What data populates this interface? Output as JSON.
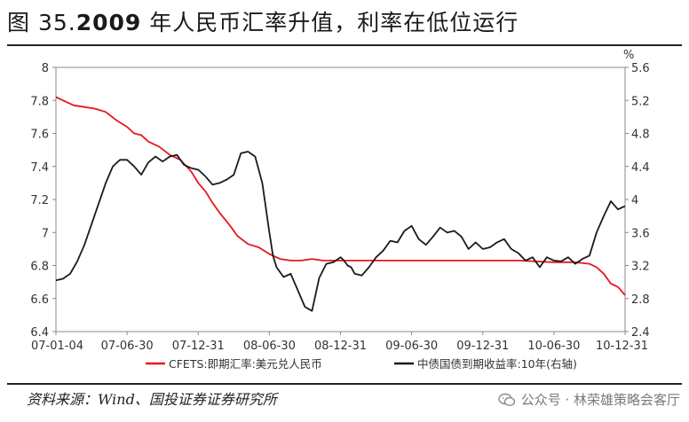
{
  "title": {
    "prefix": "图 35.",
    "year": "2009",
    "rest": " 年人民币汇率升值，利率在低位运行"
  },
  "source": "资料来源：Wind、国投证券证券研究所",
  "watermark": "公众号 · 林荣雄策略会客厅",
  "chart_data": {
    "type": "line",
    "right_unit": "%",
    "x_ticks": [
      "07-01-04",
      "07-06-30",
      "07-12-31",
      "08-06-30",
      "08-12-31",
      "09-06-30",
      "09-12-31",
      "10-06-30",
      "10-12-31"
    ],
    "y_left_ticks": [
      "6.4",
      "6.6",
      "6.8",
      "7",
      "7.2",
      "7.4",
      "7.6",
      "7.8",
      "8"
    ],
    "y_right_ticks": [
      "2.4",
      "2.8",
      "3.2",
      "3.6",
      "4",
      "4.4",
      "4.8",
      "5.2",
      "5.6"
    ],
    "ylim_left": [
      6.4,
      8
    ],
    "ylim_right": [
      2.4,
      5.6
    ],
    "xlim": [
      0,
      8
    ],
    "series": [
      {
        "name": "CFETS:即期汇率:美元兑人民币",
        "axis": "left",
        "color": "#e8161e",
        "x": [
          0,
          0.1,
          0.25,
          0.4,
          0.55,
          0.7,
          0.85,
          1.0,
          1.1,
          1.2,
          1.3,
          1.45,
          1.6,
          1.75,
          1.9,
          2.0,
          2.1,
          2.2,
          2.3,
          2.45,
          2.55,
          2.7,
          2.85,
          3.0,
          3.15,
          3.3,
          3.45,
          3.6,
          3.75,
          3.9,
          4.0,
          4.3,
          4.6,
          5.0,
          5.5,
          6.0,
          6.5,
          7.0,
          7.3,
          7.5,
          7.6,
          7.7,
          7.8,
          7.9,
          8.0
        ],
        "y": [
          7.82,
          7.8,
          7.77,
          7.76,
          7.75,
          7.73,
          7.68,
          7.64,
          7.6,
          7.59,
          7.55,
          7.52,
          7.47,
          7.44,
          7.37,
          7.3,
          7.25,
          7.18,
          7.12,
          7.04,
          6.98,
          6.93,
          6.91,
          6.87,
          6.84,
          6.83,
          6.83,
          6.84,
          6.83,
          6.83,
          6.83,
          6.83,
          6.83,
          6.83,
          6.83,
          6.83,
          6.83,
          6.82,
          6.82,
          6.81,
          6.79,
          6.75,
          6.69,
          6.67,
          6.62
        ]
      },
      {
        "name": "中债国债到期收益率:10年(右轴)",
        "axis": "right",
        "color": "#1a1a1a",
        "x": [
          0,
          0.1,
          0.2,
          0.3,
          0.4,
          0.5,
          0.6,
          0.7,
          0.8,
          0.9,
          1.0,
          1.05,
          1.1,
          1.2,
          1.3,
          1.4,
          1.5,
          1.6,
          1.7,
          1.8,
          1.9,
          2.0,
          2.1,
          2.2,
          2.3,
          2.4,
          2.5,
          2.6,
          2.7,
          2.8,
          2.9,
          3.0,
          3.05,
          3.1,
          3.2,
          3.3,
          3.4,
          3.5,
          3.6,
          3.7,
          3.8,
          3.9,
          4.0,
          4.05,
          4.1,
          4.15,
          4.2,
          4.3,
          4.4,
          4.5,
          4.6,
          4.7,
          4.8,
          4.9,
          5.0,
          5.1,
          5.2,
          5.3,
          5.4,
          5.5,
          5.6,
          5.7,
          5.8,
          5.9,
          6.0,
          6.1,
          6.2,
          6.3,
          6.4,
          6.5,
          6.6,
          6.7,
          6.8,
          6.9,
          7.0,
          7.1,
          7.2,
          7.3,
          7.4,
          7.5,
          7.6,
          7.7,
          7.8,
          7.9,
          8.0
        ],
        "y": [
          3.02,
          3.04,
          3.1,
          3.25,
          3.45,
          3.7,
          3.95,
          4.2,
          4.4,
          4.48,
          4.48,
          4.44,
          4.4,
          4.3,
          4.45,
          4.52,
          4.46,
          4.52,
          4.54,
          4.42,
          4.38,
          4.36,
          4.28,
          4.18,
          4.2,
          4.24,
          4.3,
          4.56,
          4.58,
          4.52,
          4.2,
          3.6,
          3.32,
          3.18,
          3.06,
          3.1,
          2.9,
          2.7,
          2.65,
          3.05,
          3.22,
          3.24,
          3.3,
          3.26,
          3.2,
          3.18,
          3.1,
          3.08,
          3.18,
          3.3,
          3.38,
          3.5,
          3.48,
          3.62,
          3.68,
          3.52,
          3.45,
          3.55,
          3.66,
          3.6,
          3.62,
          3.55,
          3.4,
          3.48,
          3.4,
          3.42,
          3.48,
          3.52,
          3.4,
          3.35,
          3.26,
          3.3,
          3.18,
          3.3,
          3.26,
          3.25,
          3.3,
          3.22,
          3.28,
          3.32,
          3.6,
          3.8,
          3.98,
          3.88,
          3.92
        ]
      }
    ],
    "legend_placement": "bottom",
    "grid": false
  }
}
